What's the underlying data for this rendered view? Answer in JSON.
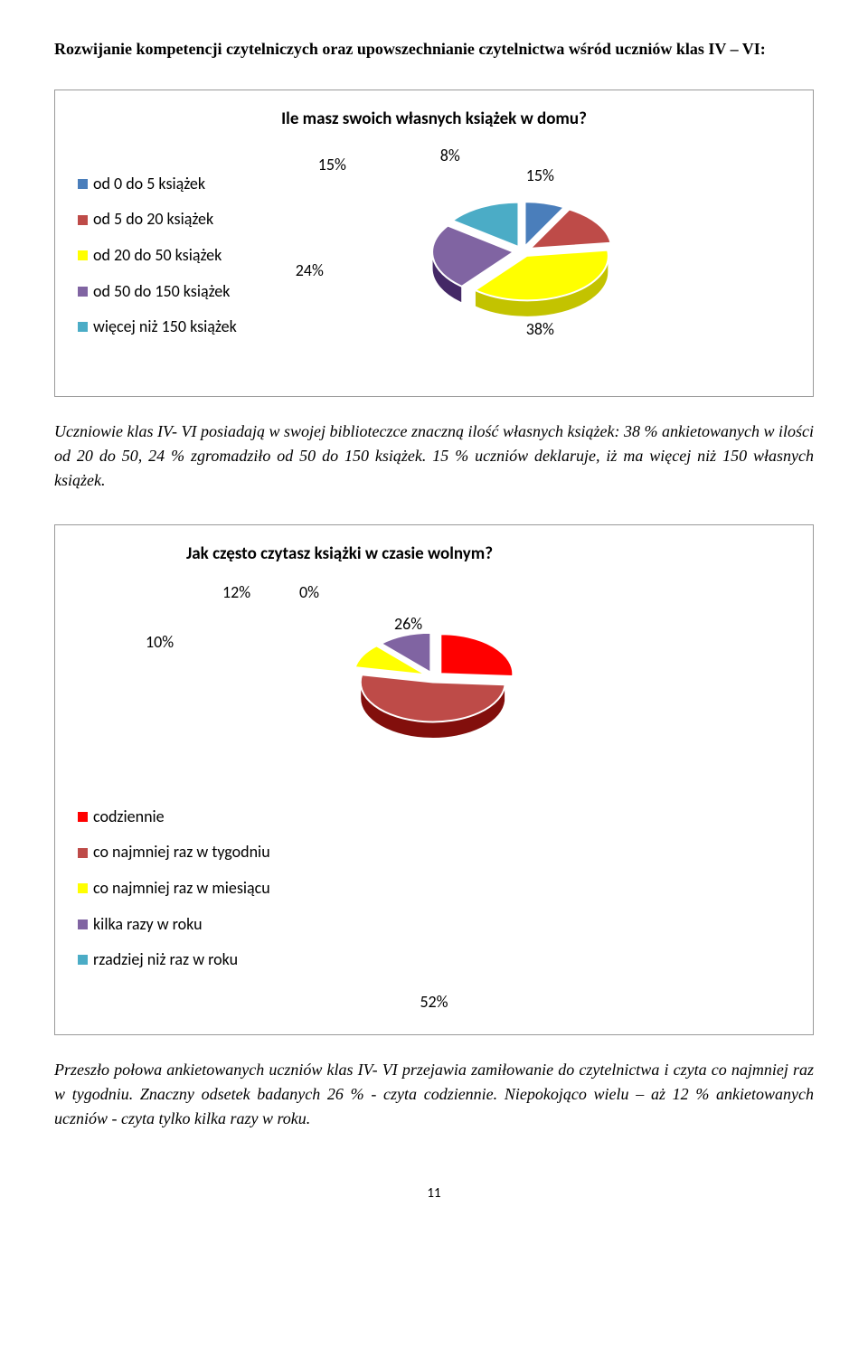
{
  "heading": "Rozwijanie kompetencji czytelniczych oraz upowszechnianie czytelnictwa wśród uczniów klas IV – VI:",
  "chart1": {
    "title": "Ile masz swoich własnych książek w domu?",
    "type": "pie",
    "legend": [
      {
        "label": "od 0 do 5 książek",
        "color": "#4a7ebb"
      },
      {
        "label": "od 5 do 20 książek",
        "color": "#be4b48"
      },
      {
        "label": "od 20 do 50 książek",
        "color": "#ffff00"
      },
      {
        "label": "od 50 do 150 książek",
        "color": "#8064a2"
      },
      {
        "label": "więcej niż 150 książek",
        "color": "#4bacc6"
      }
    ],
    "slices": [
      {
        "value": 8,
        "label": "8%",
        "color": "#4a7ebb"
      },
      {
        "value": 15,
        "label": "15%",
        "color": "#be4b48"
      },
      {
        "value": 38,
        "label": "38%",
        "color": "#ffff00"
      },
      {
        "value": 24,
        "label": "24%",
        "color": "#8064a2"
      },
      {
        "value": 15,
        "label": "15%",
        "color": "#4bacc6"
      }
    ],
    "explode": 10,
    "stroke": "#ffffff",
    "font_color": "#000000"
  },
  "para1": "Uczniowie klas IV- VI posiadają w swojej biblioteczce znaczną ilość własnych książek: 38 % ankietowanych w ilości od 20 do 50, 24 % zgromadziło od 50 do 150 książek. 15 % uczniów deklaruje, iż ma więcej niż 150 własnych książek.",
  "chart2": {
    "title": "Jak często czytasz książki w czasie wolnym?",
    "type": "pie",
    "legend": [
      {
        "label": "codziennie",
        "color": "#ff0000"
      },
      {
        "label": "co najmniej raz w tygodniu",
        "color": "#be4b48"
      },
      {
        "label": "co najmniej raz w miesiącu",
        "color": "#ffff00"
      },
      {
        "label": "kilka razy w roku",
        "color": "#8064a2"
      },
      {
        "label": "rzadziej niż raz w roku",
        "color": "#4bacc6"
      }
    ],
    "slices": [
      {
        "value": 26,
        "label": "26%",
        "color": "#ff0000"
      },
      {
        "value": 52,
        "label": "52%",
        "color": "#be4b48"
      },
      {
        "value": 10,
        "label": "10%",
        "color": "#ffff00"
      },
      {
        "value": 12,
        "label": "12%",
        "color": "#8064a2"
      },
      {
        "value": 0,
        "label": "0%",
        "color": "#4bacc6"
      }
    ],
    "explode": 10,
    "stroke": "#ffffff",
    "font_color": "#000000"
  },
  "para2": "Przeszło połowa ankietowanych uczniów klas IV- VI przejawia zamiłowanie do czytelnictwa i czyta co najmniej raz w tygodniu. Znaczny odsetek badanych 26 % - czyta codziennie. Niepokojąco wielu – aż 12 % ankietowanych uczniów - czyta tylko kilka razy w roku.",
  "page_number": "11"
}
